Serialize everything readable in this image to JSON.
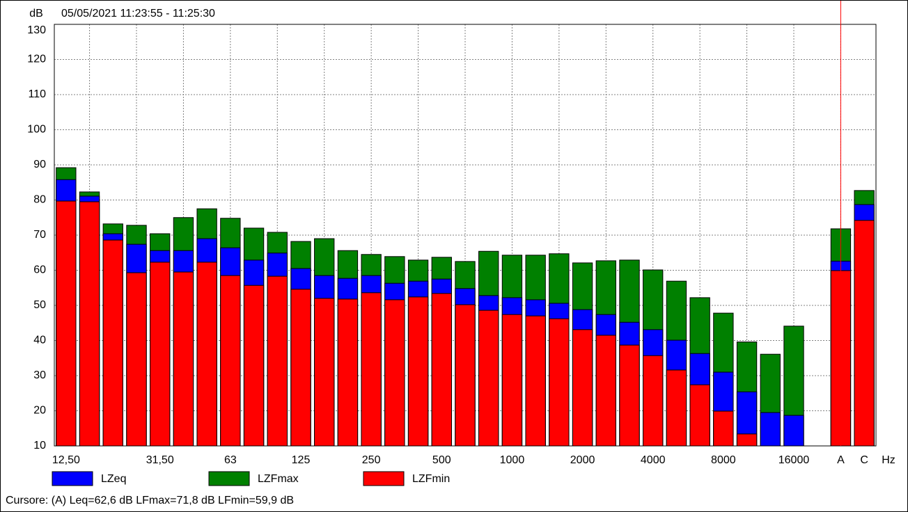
{
  "chart_data": {
    "type": "overlap_bar",
    "title": "05/05/2021 11:23:55 - 11:25:30",
    "y_unit": "dB",
    "x_unit": "Hz",
    "categories": [
      "12,50",
      null,
      null,
      null,
      "31,50",
      null,
      null,
      "63",
      null,
      null,
      "125",
      null,
      null,
      "250",
      null,
      null,
      "500",
      null,
      null,
      "1000",
      null,
      null,
      "2000",
      null,
      null,
      "4000",
      null,
      null,
      "8000",
      null,
      null,
      "16000",
      null,
      "A",
      "C"
    ],
    "series": [
      {
        "name": "LZeq",
        "color": "#0000ff",
        "values": [
          85.8,
          81.1,
          70.4,
          67.4,
          65.6,
          65.6,
          69,
          66.4,
          62.9,
          64.9,
          60.5,
          58.5,
          57.7,
          58.5,
          56.3,
          56.9,
          57.5,
          54.8,
          52.8,
          52.2,
          51.6,
          50.6,
          48.8,
          47.4,
          45.2,
          43.1,
          40.1,
          36.3,
          31,
          25.4,
          19.5,
          18.7,
          null,
          62.6,
          78.7
        ]
      },
      {
        "name": "LZFmax",
        "color": "#008000",
        "values": [
          89.2,
          82.3,
          73.2,
          72.8,
          70.4,
          75,
          77.5,
          74.8,
          72,
          70.8,
          68.2,
          69,
          65.6,
          64.5,
          63.9,
          62.9,
          63.7,
          62.5,
          65.4,
          64.3,
          64.3,
          64.7,
          62.1,
          62.7,
          62.9,
          60.1,
          56.9,
          52.2,
          47.8,
          39.6,
          36.1,
          44.1,
          null,
          71.8,
          82.7
        ]
      },
      {
        "name": "LZFmin",
        "color": "#ff0000",
        "values": [
          79.7,
          79.5,
          68.6,
          59.3,
          62.3,
          59.5,
          62.3,
          58.5,
          55.7,
          58.3,
          54.6,
          52,
          51.8,
          53.6,
          51.6,
          52.4,
          53.4,
          50.2,
          48.6,
          47.4,
          47,
          46.2,
          43.1,
          41.5,
          38.7,
          35.7,
          31.6,
          27.4,
          19.9,
          13.4,
          null,
          null,
          null,
          59.9,
          74.2
        ]
      }
    ],
    "ylim": [
      10,
      130
    ],
    "yticks": [
      10,
      20,
      30,
      40,
      50,
      60,
      70,
      80,
      90,
      100,
      110,
      120,
      130
    ],
    "grid": true,
    "cursor_readout": "Cursore: (A)  Leq=62,6 dB  LFmax=71,8 dB  LFmin=59,9 dB"
  }
}
